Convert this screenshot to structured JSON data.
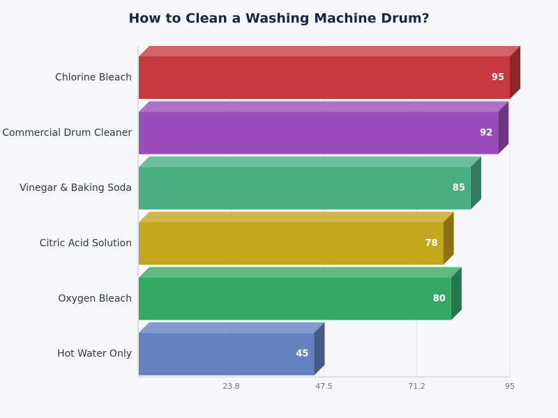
{
  "chart_data": {
    "type": "bar",
    "orientation": "horizontal",
    "title": "How to Clean a Washing Machine Drum?",
    "categories": [
      "Chlorine Bleach",
      "Commercial Drum Cleaner",
      "Vinegar & Baking Soda",
      "Citric Acid Solution",
      "Oxygen Bleach",
      "Hot Water Only"
    ],
    "values": [
      95,
      92,
      85,
      78,
      80,
      45
    ],
    "colors": [
      "#c8393e",
      "#9b4dbb",
      "#4aae84",
      "#c4a51e",
      "#36a865",
      "#6482be"
    ],
    "xlim": [
      0,
      95
    ],
    "xticks": [
      23.8,
      47.5,
      71.2,
      95
    ],
    "grid": true
  }
}
